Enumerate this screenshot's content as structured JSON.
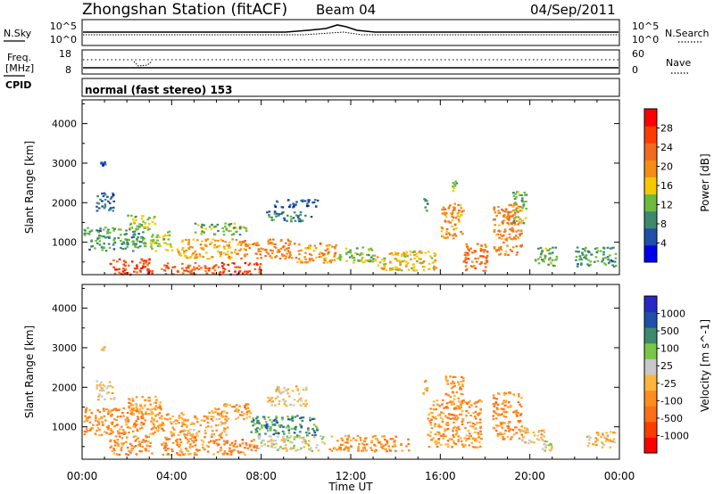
{
  "header": {
    "station": "Zhongshan Station (fitACF)",
    "beam": "Beam 04",
    "date": "04/Sep/2011"
  },
  "top_panels": {
    "nsky_label": "N.Sky",
    "nsky_ticks": [
      "10^5",
      "10^0"
    ],
    "nsearch_label": "N.Search",
    "nsearch_ticks": [
      "10^5",
      "10^0"
    ],
    "freq_label_1": "Freq.",
    "freq_label_2": "[MHz]",
    "freq_ticks": [
      "18",
      "8"
    ],
    "nave_label": "Nave",
    "nave_ticks": [
      "60",
      "0"
    ],
    "cpid_label": "CPID",
    "cpid_text": "normal (fast stereo) 153"
  },
  "colors": {
    "power_scale": [
      "#0000ee",
      "#1e4faa",
      "#3c8a6e",
      "#6dbb3c",
      "#f5c800",
      "#f58c14",
      "#f5691e",
      "#ff3c00",
      "#ff0000"
    ],
    "velocity_scale": [
      "#ff0000",
      "#ff3c00",
      "#ff6e14",
      "#ff8c1e",
      "#ffb43c",
      "#c8c8c8",
      "#78c846",
      "#3c8a6e",
      "#1e50aa",
      "#2828c8"
    ]
  },
  "chart_data": [
    {
      "type": "heatmap",
      "name": "power",
      "ylabel": "Slant Range [km]",
      "ylim": [
        180,
        4600
      ],
      "yticks": [
        "4000",
        "3000",
        "2000",
        "1000"
      ],
      "xlim": [
        0,
        24
      ],
      "xticks": [
        "00:00",
        "04:00",
        "08:00",
        "12:00",
        "16:00",
        "20:00",
        "00:00"
      ],
      "colorbar_label": "Power [dB]",
      "colorbar_ticks": [
        "28",
        "24",
        "20",
        "16",
        "12",
        "8",
        "4"
      ],
      "clim": [
        0,
        32
      ],
      "blobs": [
        {
          "t0": 0.05,
          "t1": 2.8,
          "r0": 800,
          "r1": 1400,
          "v": 10
        },
        {
          "t0": 0.6,
          "t1": 1.4,
          "r0": 1800,
          "r1": 2300,
          "v": 7
        },
        {
          "t0": 0.8,
          "t1": 1.0,
          "r0": 2950,
          "r1": 3050,
          "v": 6
        },
        {
          "t0": 1.2,
          "t1": 3.1,
          "r0": 200,
          "r1": 600,
          "v": 26
        },
        {
          "t0": 2.0,
          "t1": 3.3,
          "r0": 1300,
          "r1": 1700,
          "v": 14
        },
        {
          "t0": 3.0,
          "t1": 4.0,
          "r0": 800,
          "r1": 1300,
          "v": 14
        },
        {
          "t0": 3.5,
          "t1": 6.0,
          "r0": 200,
          "r1": 500,
          "v": 24
        },
        {
          "t0": 4.2,
          "t1": 7.0,
          "r0": 600,
          "r1": 1100,
          "v": 18
        },
        {
          "t0": 5.0,
          "t1": 7.3,
          "r0": 1200,
          "r1": 1500,
          "v": 12
        },
        {
          "t0": 6.0,
          "t1": 8.0,
          "r0": 200,
          "r1": 500,
          "v": 27
        },
        {
          "t0": 7.0,
          "t1": 9.5,
          "r0": 600,
          "r1": 1100,
          "v": 21
        },
        {
          "t0": 8.2,
          "t1": 10.2,
          "r0": 1550,
          "r1": 1800,
          "v": 8
        },
        {
          "t0": 8.5,
          "t1": 10.5,
          "r0": 1900,
          "r1": 2100,
          "v": 6
        },
        {
          "t0": 9.5,
          "t1": 11.3,
          "r0": 500,
          "r1": 1000,
          "v": 19
        },
        {
          "t0": 11.3,
          "t1": 13.0,
          "r0": 500,
          "r1": 900,
          "v": 13
        },
        {
          "t0": 13.0,
          "t1": 15.8,
          "r0": 300,
          "r1": 800,
          "v": 17
        },
        {
          "t0": 15.2,
          "t1": 15.4,
          "r0": 1800,
          "r1": 2200,
          "v": 10
        },
        {
          "t0": 16.0,
          "t1": 17.0,
          "r0": 1100,
          "r1": 2000,
          "v": 20
        },
        {
          "t0": 16.5,
          "t1": 16.7,
          "r0": 2300,
          "r1": 2650,
          "v": 13
        },
        {
          "t0": 17.0,
          "t1": 18.1,
          "r0": 300,
          "r1": 1000,
          "v": 22
        },
        {
          "t0": 18.3,
          "t1": 19.6,
          "r0": 700,
          "r1": 2000,
          "v": 21
        },
        {
          "t0": 19.2,
          "t1": 19.8,
          "r0": 1500,
          "r1": 2300,
          "v": 12
        },
        {
          "t0": 20.2,
          "t1": 21.2,
          "r0": 400,
          "r1": 900,
          "v": 11
        },
        {
          "t0": 22.0,
          "t1": 23.8,
          "r0": 400,
          "r1": 900,
          "v": 10
        }
      ]
    },
    {
      "type": "heatmap",
      "name": "velocity",
      "ylabel": "Slant Range [km]",
      "ylim": [
        180,
        4600
      ],
      "yticks": [
        "4000",
        "3000",
        "2000",
        "1000"
      ],
      "xlim": [
        0,
        24
      ],
      "xticks": [
        "00:00",
        "04:00",
        "08:00",
        "12:00",
        "16:00",
        "20:00",
        "00:00"
      ],
      "xlabel": "Time UT",
      "colorbar_label": "Velocity [m s^-1]",
      "colorbar_ticks": [
        "1000",
        "500",
        "100",
        "25",
        "-25",
        "-100",
        "-500",
        "-1000"
      ],
      "clim": [
        -1250,
        1250
      ],
      "blobs": [
        {
          "t0": 0.05,
          "t1": 2.8,
          "r0": 800,
          "r1": 1500,
          "v": -400
        },
        {
          "t0": 0.6,
          "t1": 1.4,
          "r0": 1700,
          "r1": 2200,
          "v": -20
        },
        {
          "t0": 0.8,
          "t1": 1.0,
          "r0": 2950,
          "r1": 3050,
          "v": -20
        },
        {
          "t0": 1.2,
          "t1": 3.1,
          "r0": 300,
          "r1": 800,
          "v": -450
        },
        {
          "t0": 2.0,
          "t1": 3.5,
          "r0": 1300,
          "r1": 1800,
          "v": -300
        },
        {
          "t0": 3.0,
          "t1": 4.5,
          "r0": 800,
          "r1": 1400,
          "v": -300
        },
        {
          "t0": 3.5,
          "t1": 6.2,
          "r0": 300,
          "r1": 800,
          "v": -400
        },
        {
          "t0": 4.5,
          "t1": 6.5,
          "r0": 800,
          "r1": 1300,
          "v": -200
        },
        {
          "t0": 5.5,
          "t1": 7.5,
          "r0": 1200,
          "r1": 1600,
          "v": -300
        },
        {
          "t0": 6.2,
          "t1": 7.8,
          "r0": 300,
          "r1": 700,
          "v": -500
        },
        {
          "t0": 7.5,
          "t1": 10.5,
          "r0": 800,
          "r1": 1300,
          "v": 600
        },
        {
          "t0": 7.8,
          "t1": 10.8,
          "r0": 400,
          "r1": 800,
          "v": 120
        },
        {
          "t0": 8.2,
          "t1": 10.0,
          "r0": 1550,
          "r1": 1800,
          "v": -60
        },
        {
          "t0": 8.5,
          "t1": 10.0,
          "r0": 1850,
          "r1": 2050,
          "v": 0
        },
        {
          "t0": 11.0,
          "t1": 14.6,
          "r0": 400,
          "r1": 800,
          "v": -400
        },
        {
          "t0": 15.2,
          "t1": 15.4,
          "r0": 1800,
          "r1": 2200,
          "v": -400
        },
        {
          "t0": 15.4,
          "t1": 17.8,
          "r0": 500,
          "r1": 1700,
          "v": -350
        },
        {
          "t0": 16.2,
          "t1": 17.0,
          "r0": 1500,
          "r1": 2300,
          "v": -350
        },
        {
          "t0": 18.3,
          "t1": 19.6,
          "r0": 700,
          "r1": 1900,
          "v": -400
        },
        {
          "t0": 19.6,
          "t1": 20.6,
          "r0": 600,
          "r1": 1000,
          "v": -100
        },
        {
          "t0": 20.5,
          "t1": 21.0,
          "r0": 400,
          "r1": 800,
          "v": 60
        },
        {
          "t0": 22.5,
          "t1": 23.8,
          "r0": 500,
          "r1": 900,
          "v": -200
        }
      ]
    }
  ]
}
